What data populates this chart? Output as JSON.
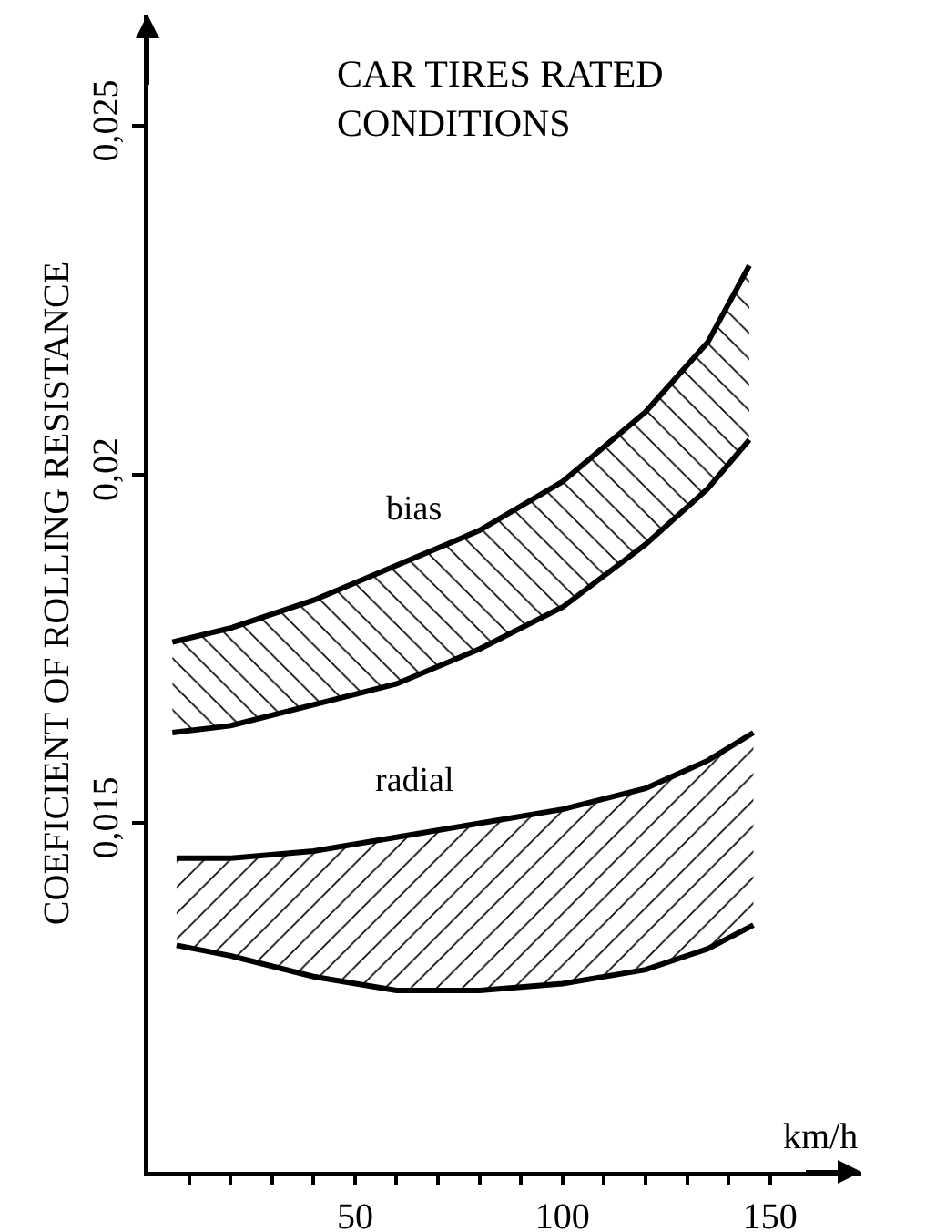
{
  "chart_data": {
    "type": "line",
    "title": "CAR TIRES RATED\nCONDITIONS",
    "xlabel": "km/h",
    "ylabel": "COEFICIENT OF ROLLING RESISTANCE",
    "xlim": [
      0,
      172
    ],
    "ylim": [
      0.01,
      0.0266
    ],
    "xticks": [
      {
        "value": 10,
        "label": null
      },
      {
        "value": 20,
        "label": null
      },
      {
        "value": 30,
        "label": null
      },
      {
        "value": 40,
        "label": null
      },
      50,
      {
        "value": 60,
        "label": null
      },
      {
        "value": 70,
        "label": null
      },
      {
        "value": 80,
        "label": null
      },
      {
        "value": 90,
        "label": null
      },
      100,
      {
        "value": 110,
        "label": null
      },
      {
        "value": 120,
        "label": null
      },
      {
        "value": 130,
        "label": null
      },
      {
        "value": 140,
        "label": null
      },
      150
    ],
    "yticks": [
      {
        "value": 0.015,
        "label": "0,015"
      },
      {
        "value": 0.02,
        "label": "0,02"
      },
      {
        "value": 0.025,
        "label": "0,025"
      }
    ],
    "grid": false,
    "legend": false,
    "marker": "none",
    "line_style": "solid",
    "series": [
      {
        "color": "#000000",
        "x": [
          6,
          20,
          40,
          60,
          80,
          100,
          120,
          135,
          145
        ],
        "values": [
          0.0163,
          0.0164,
          0.0167,
          0.017,
          0.0175,
          0.0181,
          0.019,
          0.0198,
          0.0205
        ]
      },
      {
        "type": "area",
        "name": "bias",
        "color": "#000000",
        "x": [
          6,
          20,
          40,
          60,
          80,
          100,
          120,
          135,
          145
        ],
        "values": [
          0.0176,
          0.0178,
          0.0182,
          0.0187,
          0.0192,
          0.0199,
          0.0209,
          0.0219,
          0.023
        ]
      },
      {
        "color": "#000000",
        "x": [
          7,
          20,
          40,
          60,
          80,
          100,
          120,
          135,
          146
        ],
        "values": [
          0.01325,
          0.0131,
          0.0128,
          0.0126,
          0.0126,
          0.0127,
          0.0129,
          0.0132,
          0.01354
        ]
      },
      {
        "type": "area",
        "name": "radial",
        "color": "#000000",
        "x": [
          7,
          20,
          40,
          60,
          80,
          100,
          120,
          135,
          146
        ],
        "values": [
          0.0145,
          0.0145,
          0.0146,
          0.0148,
          0.015,
          0.0152,
          0.0155,
          0.0159,
          0.0163
        ]
      }
    ]
  }
}
